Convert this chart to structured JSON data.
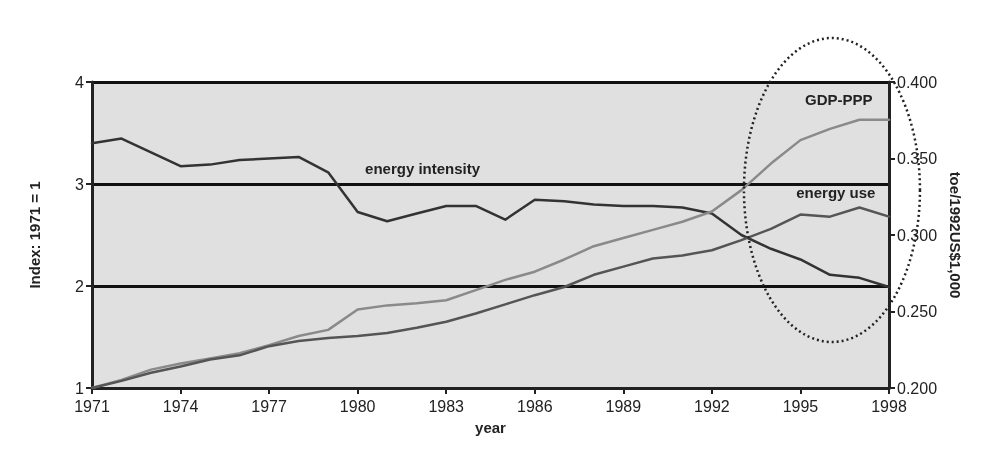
{
  "chart_data": {
    "type": "line",
    "xlabel": "year",
    "ylabel": "Index: 1971 = 1",
    "y2label": "toe/1992US$1,000",
    "x": [
      1971,
      1972,
      1973,
      1974,
      1975,
      1976,
      1977,
      1978,
      1979,
      1980,
      1981,
      1982,
      1983,
      1984,
      1985,
      1986,
      1987,
      1988,
      1989,
      1990,
      1991,
      1992,
      1993,
      1994,
      1995,
      1996,
      1997,
      1998
    ],
    "series": [
      {
        "name": "energy intensity",
        "color": "#333333",
        "axis": "y2",
        "values": [
          0.36,
          0.363,
          0.354,
          0.345,
          0.346,
          0.349,
          0.35,
          0.351,
          0.341,
          0.315,
          0.309,
          0.314,
          0.319,
          0.319,
          0.31,
          0.323,
          0.322,
          0.32,
          0.319,
          0.319,
          0.318,
          0.314,
          0.3,
          0.291,
          0.284,
          0.274,
          0.272,
          0.266
        ]
      },
      {
        "name": "GDP-PPP",
        "color": "#8a8a8a",
        "values": [
          1,
          1.08,
          1.18,
          1.24,
          1.29,
          1.34,
          1.42,
          1.51,
          1.57,
          1.77,
          1.81,
          1.83,
          1.86,
          1.96,
          2.06,
          2.14,
          2.26,
          2.39,
          2.47,
          2.55,
          2.63,
          2.73,
          2.94,
          3.2,
          3.43,
          3.54,
          3.63,
          3.63
        ]
      },
      {
        "name": "energy use",
        "color": "#555555",
        "values": [
          1,
          1.07,
          1.15,
          1.21,
          1.28,
          1.32,
          1.41,
          1.46,
          1.49,
          1.51,
          1.54,
          1.59,
          1.65,
          1.73,
          1.82,
          1.91,
          1.99,
          2.11,
          2.19,
          2.27,
          2.3,
          2.35,
          2.45,
          2.56,
          2.7,
          2.68,
          2.77,
          2.68
        ]
      }
    ],
    "xlim": [
      1971,
      1998
    ],
    "xticks": [
      1971,
      1974,
      1977,
      1980,
      1983,
      1986,
      1989,
      1992,
      1995,
      1998
    ],
    "ylim": [
      1,
      4
    ],
    "yticks": [
      1,
      2,
      3,
      4
    ],
    "y2lim": [
      0.2,
      0.4
    ],
    "y2ticks": [
      {
        "value": 0.2,
        "label": "0.200"
      },
      {
        "value": 0.25,
        "label": "0.250"
      },
      {
        "value": 0.3,
        "label": "0.300"
      },
      {
        "value": 0.35,
        "label": "0.350"
      },
      {
        "value": 0.4,
        "label": "0.400"
      }
    ],
    "grid": "y",
    "legend": false,
    "marker": "none",
    "line_style": "solid"
  }
}
